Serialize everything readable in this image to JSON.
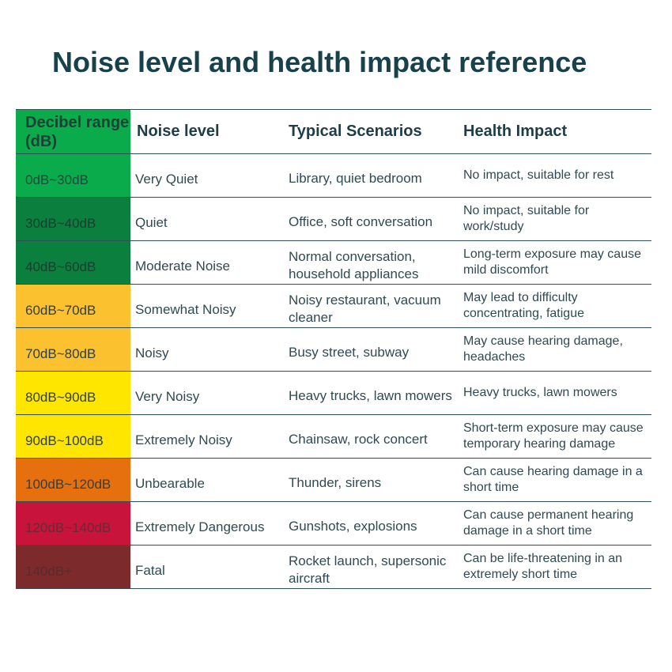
{
  "title": "Noise level and health impact reference",
  "headers": {
    "decibel_range": "Decibel range (dB)",
    "noise_level": "Noise level",
    "typical_scenarios": "Typical Scenarios",
    "health_impact": "Health Impact"
  },
  "rows": [
    {
      "range": "0dB~30dB",
      "level": "Very Quiet",
      "scenarios": "Library, quiet bedroom",
      "impact": "No impact, suitable for rest",
      "color": "#0aab4a",
      "text_color": "#1d4a3a"
    },
    {
      "range": "30dB~40dB",
      "level": "Quiet",
      "scenarios": "Office, soft conversation",
      "impact": "No impact, suitable for work/study",
      "color": "#0b7f3e",
      "text_color": "#163f2e"
    },
    {
      "range": "40dB~60dB",
      "level": "Moderate Noise",
      "scenarios": "Normal conversation, household appliances",
      "impact": "Long-term exposure may cause mild discomfort",
      "color": "#0b7f3e",
      "text_color": "#163f2e"
    },
    {
      "range": "60dB~70dB",
      "level": "Somewhat Noisy",
      "scenarios": "Noisy restaurant, vacuum cleaner",
      "impact": "May lead to difficulty concentrating, fatigue",
      "color": "#fcc12f",
      "text_color": "#2f3f45"
    },
    {
      "range": "70dB~80dB",
      "level": "Noisy",
      "scenarios": "Busy street, subway",
      "impact": "May cause hearing damage, headaches",
      "color": "#fcc12f",
      "text_color": "#2f3f45"
    },
    {
      "range": "80dB~90dB",
      "level": "Very Noisy",
      "scenarios": "Heavy trucks, lawn mowers",
      "impact": "Heavy trucks, lawn mowers",
      "color": "#ffe600",
      "text_color": "#2f3f45"
    },
    {
      "range": "90dB~100dB",
      "level": "Extremely Noisy",
      "scenarios": "Chainsaw, rock concert",
      "impact": "Short-term exposure may cause temporary hearing damage",
      "color": "#ffe600",
      "text_color": "#2f3f45"
    },
    {
      "range": "100dB~120dB",
      "level": "Unbearable",
      "scenarios": "Thunder, sirens",
      "impact": "Can cause hearing damage in a short time",
      "color": "#e5700d",
      "text_color": "#2f3f45"
    },
    {
      "range": "120dB~140dB",
      "level": "Extremely Dangerous",
      "scenarios": "Gunshots, explosions",
      "impact": "Can cause permanent hearing damage in a short time",
      "color": "#c8133a",
      "text_color": "#6a2a35"
    },
    {
      "range": "140dB+",
      "level": "Fatal",
      "scenarios": "Rocket launch, supersonic aircraft",
      "impact": "Can be life-threatening in an extremely short time",
      "color": "#7d2a2d",
      "text_color": "#5a2a2c"
    }
  ]
}
